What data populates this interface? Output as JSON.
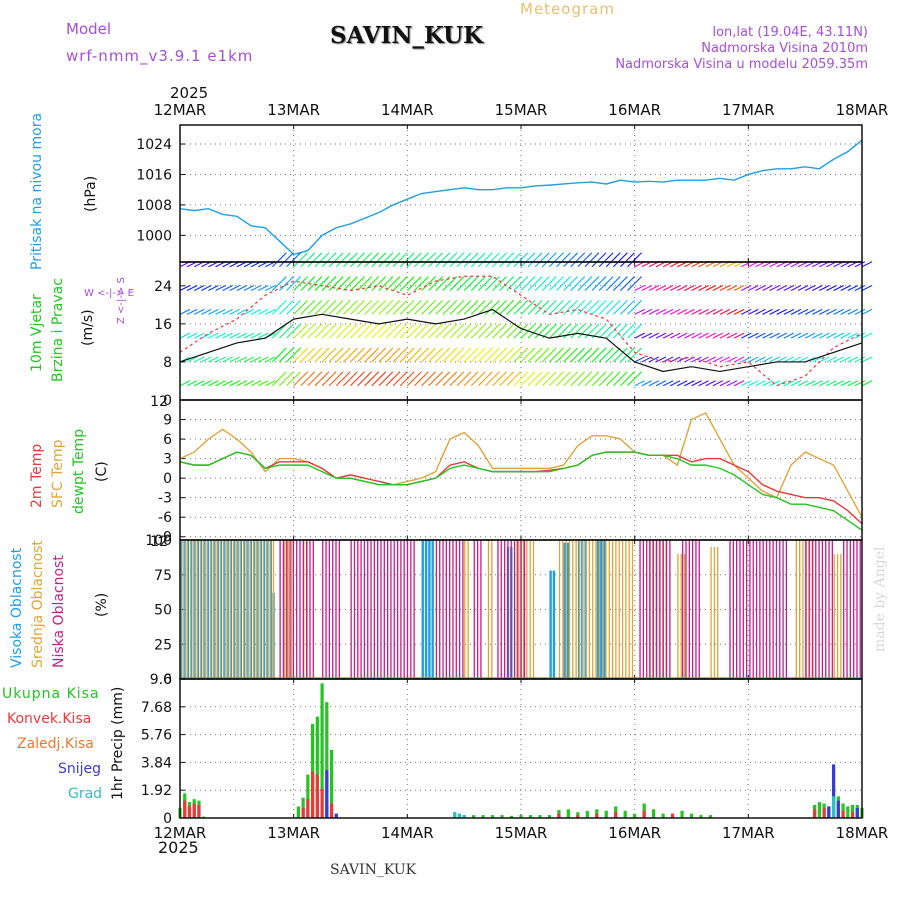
{
  "header": {
    "model_label": "Model",
    "model_name": "wrf-nmm_v3.9.1 e1km",
    "station": "SAVIN_KUK",
    "meteogram": "Meteogram",
    "lonlat": "lon,lat (19.04E, 43.11N)",
    "elevation": "Nadmorska Visina 2010m",
    "model_elevation": "Nadmorska Visina u modelu 2059.35m",
    "year_top": "2025",
    "year_bottom": "2025",
    "footer_station": "SAVIN_KUK",
    "watermark": "made by Angel"
  },
  "panel_labels": {
    "pressure": {
      "name": "Pritisak na nivou mora",
      "unit": "(hPa)"
    },
    "wind": {
      "name1": "10m Vjetar",
      "name2": "Brzina i Pravac",
      "unit": "(m/s)",
      "compass": "W <-|-> E",
      "compass_ns": "Z <-|-> S"
    },
    "temp": {
      "t2m": "2m Temp",
      "sfc": "SFC Temp",
      "dew": "dewpt Temp",
      "unit": "(C)"
    },
    "cloud": {
      "high": "Visoka Oblacnost",
      "mid": "Srednja Oblacnost",
      "low": "Niska Oblacnost",
      "unit": "(%)"
    },
    "precip": {
      "total": "Ukupna Kisa",
      "conv": "Konvek.Kisa",
      "frz": "Zaledj.Kisa",
      "snow": "Snijeg",
      "grad": "Grad",
      "unit": "1hr Precip (mm)"
    }
  },
  "colors": {
    "pressure": "#1e9fe6",
    "total": "#22c522",
    "conv": "#e8393c",
    "frz": "#f0782d",
    "snow": "#3a3ad6",
    "grad": "#2fbfbf",
    "t2m": "#e8393c",
    "sfc": "#e0a43c",
    "dew": "#22c522",
    "high": "#1e9fe6",
    "mid": "#e0a43c",
    "low": "#c21f8c",
    "grid": "#777777",
    "purple": "#a64fd6"
  },
  "chart_data": [
    {
      "type": "line",
      "name": "pressure",
      "x_ticks": [
        "12MAR",
        "13MAR",
        "14MAR",
        "15MAR",
        "16MAR",
        "17MAR",
        "18MAR"
      ],
      "ylim": [
        993,
        1029
      ],
      "yticks": [
        1000,
        1008,
        1016,
        1024
      ],
      "x": [
        0,
        3,
        6,
        9,
        12,
        15,
        18,
        21,
        24,
        27,
        30,
        33,
        36,
        39,
        42,
        45,
        48,
        51,
        54,
        57,
        60,
        63,
        66,
        69,
        72,
        75,
        78,
        81,
        84,
        87,
        90,
        93,
        96,
        99,
        102,
        105,
        108,
        111,
        114,
        117,
        120,
        123,
        126,
        129,
        132,
        135,
        138,
        141,
        144
      ],
      "values": [
        1007,
        1006.5,
        1007,
        1005.5,
        1005,
        1002.5,
        1002,
        998.5,
        995,
        996,
        1000,
        1002,
        1003,
        1004.5,
        1006,
        1008,
        1009.5,
        1011,
        1011.5,
        1012,
        1012.5,
        1012,
        1012,
        1012.5,
        1012.5,
        1013,
        1013.2,
        1013.5,
        1013.8,
        1014,
        1013.5,
        1014.5,
        1014,
        1014.2,
        1014,
        1014.5,
        1014.5,
        1014.5,
        1015,
        1014.5,
        1016,
        1017,
        1017.5,
        1017.5,
        1018,
        1017.5,
        1020,
        1022,
        1025
      ]
    },
    {
      "type": "line",
      "name": "wind_speed",
      "ylim": [
        0,
        29
      ],
      "yticks": [
        0,
        8,
        16,
        24
      ],
      "top_tick": "12",
      "series": [
        {
          "name": "speed",
          "x": [
            0,
            6,
            12,
            18,
            24,
            30,
            36,
            42,
            48,
            54,
            60,
            66,
            72,
            78,
            84,
            90,
            96,
            102,
            108,
            114,
            120,
            126,
            132,
            138,
            144
          ],
          "values": [
            8,
            10,
            12,
            13,
            17,
            18,
            17,
            16,
            17,
            16,
            17,
            19,
            15,
            13,
            14,
            13,
            8,
            6,
            7,
            6,
            7,
            8,
            8,
            10,
            12
          ]
        },
        {
          "name": "gust",
          "x": [
            0,
            6,
            12,
            18,
            24,
            30,
            36,
            42,
            48,
            54,
            60,
            66,
            72,
            78,
            84,
            90,
            96,
            102,
            108,
            114,
            120,
            126,
            132,
            138,
            144
          ],
          "values": [
            10,
            14,
            17,
            22,
            25,
            24,
            23,
            24,
            22,
            25,
            26,
            26,
            22,
            18,
            19,
            17,
            10,
            8,
            9,
            7,
            8,
            3,
            5,
            11,
            14
          ]
        }
      ]
    },
    {
      "type": "line",
      "name": "temperature",
      "ylim": [
        -9.5,
        12
      ],
      "yticks": [
        -9,
        -6,
        -3,
        0,
        3,
        6,
        9
      ],
      "top_tick": "12",
      "series": [
        {
          "name": "2m Temp",
          "x": [
            0,
            3,
            6,
            9,
            12,
            15,
            18,
            21,
            24,
            27,
            30,
            33,
            36,
            39,
            42,
            45,
            48,
            51,
            54,
            57,
            60,
            63,
            66,
            69,
            72,
            75,
            78,
            81,
            84,
            87,
            90,
            93,
            96,
            99,
            102,
            105,
            108,
            111,
            114,
            117,
            120,
            123,
            126,
            129,
            132,
            135,
            138,
            141,
            144
          ],
          "values": [
            2.5,
            2,
            2,
            3,
            4,
            3.5,
            1.5,
            2.5,
            2.5,
            2.5,
            1.5,
            0,
            0.5,
            0,
            -0.5,
            -1,
            -1,
            -0.5,
            0,
            2,
            2.5,
            1.5,
            1,
            1,
            1,
            1,
            1.2,
            1.5,
            2,
            3.5,
            4,
            4,
            4,
            3.5,
            3.5,
            3.5,
            2.5,
            3,
            3,
            2,
            1,
            -1,
            -2,
            -2.5,
            -3,
            -3,
            -3.5,
            -5,
            -7
          ]
        },
        {
          "name": "SFC Temp",
          "x": [
            0,
            3,
            6,
            9,
            12,
            15,
            18,
            21,
            24,
            27,
            30,
            33,
            36,
            39,
            42,
            45,
            48,
            51,
            54,
            57,
            60,
            63,
            66,
            69,
            72,
            75,
            78,
            81,
            84,
            87,
            90,
            93,
            96,
            99,
            102,
            105,
            108,
            111,
            114,
            117,
            120,
            123,
            126,
            129,
            132,
            135,
            138,
            141,
            144
          ],
          "values": [
            3,
            4,
            6,
            7.5,
            6,
            4,
            1,
            3,
            3,
            2.5,
            1.5,
            0,
            0,
            -0.5,
            -1,
            -1,
            -0.5,
            0,
            1,
            6,
            7,
            5,
            1.5,
            1.5,
            1.5,
            1.5,
            1.5,
            2,
            5,
            6.5,
            6.5,
            6,
            4,
            3.5,
            3.5,
            2,
            9,
            10,
            6,
            2,
            0,
            -2,
            -3,
            2,
            4,
            3,
            2,
            -2,
            -6
          ]
        },
        {
          "name": "dewpt Temp",
          "x": [
            0,
            3,
            6,
            9,
            12,
            15,
            18,
            21,
            24,
            27,
            30,
            33,
            36,
            39,
            42,
            45,
            48,
            51,
            54,
            57,
            60,
            63,
            66,
            69,
            72,
            75,
            78,
            81,
            84,
            87,
            90,
            93,
            96,
            99,
            102,
            105,
            108,
            111,
            114,
            117,
            120,
            123,
            126,
            129,
            132,
            135,
            138,
            141,
            144
          ],
          "values": [
            2.5,
            2,
            2,
            3,
            4,
            3.5,
            1.5,
            2,
            2,
            2,
            1,
            0,
            0,
            -0.5,
            -1,
            -1,
            -1,
            -0.5,
            0,
            1.5,
            2,
            1.5,
            1,
            1,
            1,
            1,
            1,
            1.5,
            2,
            3.5,
            4,
            4,
            4,
            3.5,
            3.5,
            3,
            2,
            2,
            1.5,
            0.5,
            -1,
            -2.5,
            -3,
            -4,
            -4,
            -4.5,
            -5,
            -6.5,
            -8
          ]
        }
      ]
    },
    {
      "type": "bar",
      "name": "cloud_cover",
      "ylim": [
        0,
        100
      ],
      "yticks": [
        0,
        25,
        50,
        75,
        100
      ],
      "series": [
        {
          "name": "Visoka Oblacnost",
          "segments": [
            [
              0,
              19.5,
              100
            ],
            [
              19.5,
              20,
              62
            ],
            [
              51,
              53.5,
              100
            ],
            [
              69,
              70,
              95
            ],
            [
              78,
              79,
              78
            ],
            [
              81,
              82,
              98
            ],
            [
              84,
              86,
              100
            ],
            [
              88,
              90,
              100
            ]
          ]
        },
        {
          "name": "Srednja Oblacnost",
          "segments": [
            [
              0,
              20,
              100
            ],
            [
              22,
              24,
              100
            ],
            [
              26,
              27,
              100
            ],
            [
              60,
              61,
              100
            ],
            [
              65,
              66,
              100
            ],
            [
              71,
              75,
              100
            ],
            [
              80,
              96,
              100
            ],
            [
              99,
              103,
              100
            ],
            [
              105,
              107,
              90
            ],
            [
              112,
              114,
              95
            ],
            [
              130,
              134,
              100
            ],
            [
              138,
              140,
              90
            ]
          ]
        },
        {
          "name": "Niska Oblacnost",
          "segments": [
            [
              21,
              28,
              100
            ],
            [
              30,
              34,
              100
            ],
            [
              36,
              50,
              100
            ],
            [
              54,
              60,
              100
            ],
            [
              62,
              64,
              100
            ],
            [
              67,
              73,
              100
            ],
            [
              97,
              104,
              100
            ],
            [
              106,
              110,
              100
            ],
            [
              116,
              128,
              100
            ],
            [
              132,
              138,
              100
            ],
            [
              140,
              144,
              100
            ]
          ]
        }
      ]
    },
    {
      "type": "bar",
      "name": "precipitation",
      "ylim": [
        0,
        9.6
      ],
      "yticks": [
        0,
        1.92,
        3.84,
        5.76,
        7.68,
        9.6
      ],
      "yticklabels": [
        "0",
        "1.92",
        "3.84",
        "5.76",
        "7.68",
        "9.6"
      ],
      "series": [
        {
          "name": "Ukupna Kisa",
          "x": [
            0,
            1,
            2,
            3,
            4,
            5,
            25,
            26,
            27,
            28,
            29,
            30,
            31,
            32,
            33,
            58,
            59,
            60,
            62,
            64,
            66,
            68,
            70,
            72,
            74,
            76,
            78,
            80,
            82,
            84,
            86,
            88,
            90,
            92,
            94,
            96,
            98,
            100,
            102,
            104,
            106,
            108,
            110,
            112,
            134,
            135,
            136,
            137,
            138,
            139,
            140,
            141,
            142,
            143,
            144
          ],
          "values": [
            0.7,
            1.7,
            1.1,
            1.3,
            1.2,
            0.1,
            0.8,
            1.4,
            3.0,
            6.5,
            7.0,
            9.3,
            8.0,
            4.7,
            0.3,
            0.4,
            0.3,
            0.2,
            0.2,
            0.2,
            0.2,
            0.2,
            0.15,
            0.2,
            0.2,
            0.2,
            0.2,
            0.55,
            0.6,
            0.4,
            0.5,
            0.6,
            0.5,
            0.8,
            0.5,
            0.3,
            1.0,
            0.6,
            0.3,
            0.3,
            0.5,
            0.3,
            0.2,
            0.2,
            0.9,
            1.1,
            1.0,
            0.8,
            3.7,
            1.5,
            1.0,
            0.8,
            0.9,
            0.9,
            0.7
          ]
        },
        {
          "name": "Konvek.Kisa",
          "x": [
            1,
            2,
            3,
            4,
            26,
            27,
            28,
            29,
            30,
            31,
            32,
            80,
            84,
            88,
            92,
            98,
            104,
            134,
            136,
            140,
            142
          ],
          "values": [
            1.2,
            0.8,
            1.0,
            0.9,
            0.7,
            1.3,
            3.2,
            3.0,
            2.0,
            1.4,
            1.0,
            0.3,
            0.2,
            0.3,
            0.4,
            0.5,
            0.3,
            0.6,
            0.7,
            0.5,
            0.4
          ]
        },
        {
          "name": "Snijeg",
          "x": [
            31,
            33,
            137,
            138,
            139,
            143
          ],
          "values": [
            3.3,
            0.3,
            0.8,
            3.7,
            1.2,
            0.7
          ]
        },
        {
          "name": "Grad",
          "x": [
            58,
            59,
            60,
            138
          ],
          "values": [
            0.4,
            0.3,
            0.2,
            1.5
          ]
        }
      ]
    }
  ]
}
